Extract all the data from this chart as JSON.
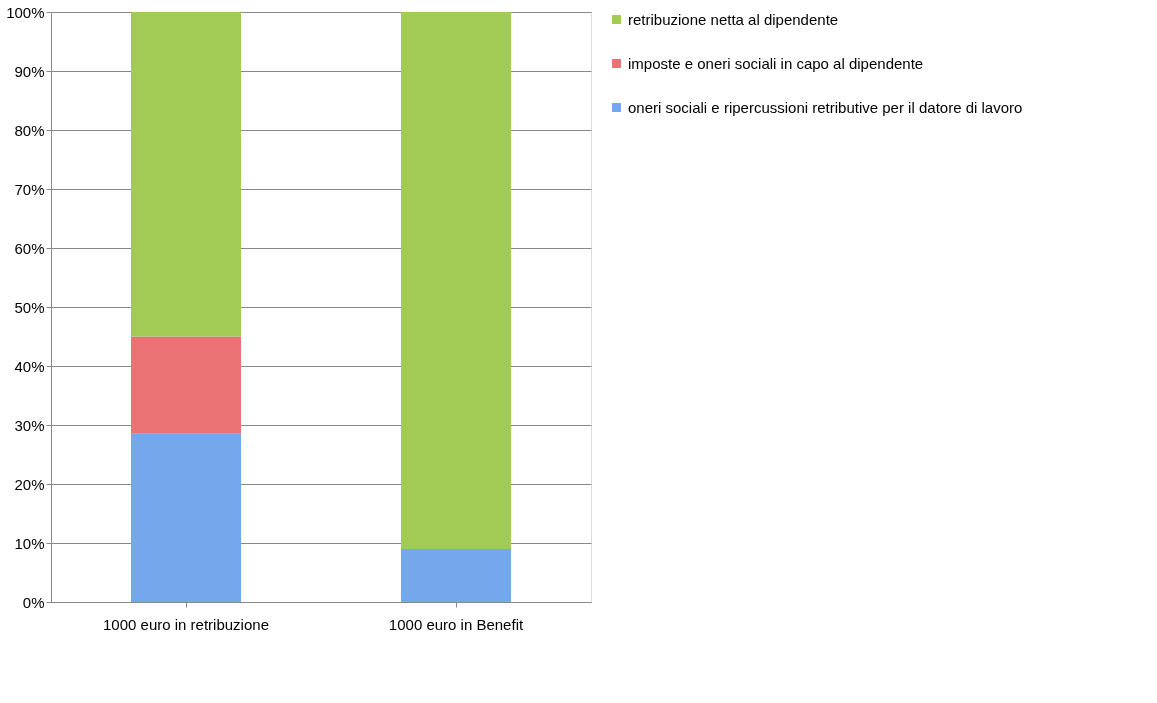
{
  "chart_data": {
    "type": "bar",
    "stacked": true,
    "categories": [
      "1000 euro in retribuzione",
      "1000 euro in Benefit"
    ],
    "series": [
      {
        "name": "oneri sociali e ripercussioni retributive per il datore di lavoro",
        "color": "#74a8ec",
        "values": [
          28.5,
          9
        ]
      },
      {
        "name": "imposte e oneri sociali in capo al dipendente",
        "color": "#ea7275",
        "values": [
          16.5,
          0
        ]
      },
      {
        "name": "retribuzione netta al dipendente",
        "color": "#a2cb55",
        "values": [
          55,
          91
        ]
      }
    ],
    "ylim": [
      0,
      100
    ],
    "yticks": [
      {
        "value": 0,
        "label": "0%"
      },
      {
        "value": 10,
        "label": "10%"
      },
      {
        "value": 20,
        "label": "20%"
      },
      {
        "value": 30,
        "label": "30%"
      },
      {
        "value": 40,
        "label": "40%"
      },
      {
        "value": 50,
        "label": "50%"
      },
      {
        "value": 60,
        "label": "60%"
      },
      {
        "value": 70,
        "label": "70%"
      },
      {
        "value": 80,
        "label": "80%"
      },
      {
        "value": 90,
        "label": "90%"
      },
      {
        "value": 100,
        "label": "100%"
      }
    ],
    "grid": "y",
    "legend": "right"
  }
}
